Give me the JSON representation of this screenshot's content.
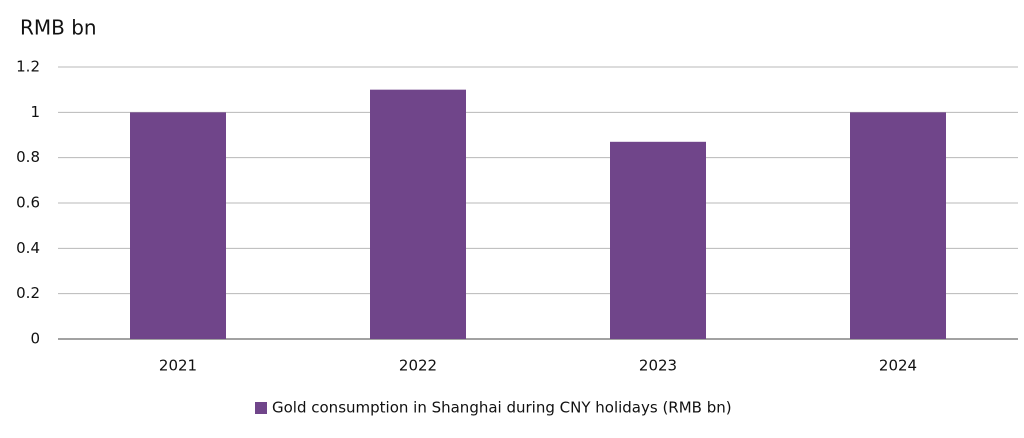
{
  "chart_data": {
    "type": "bar",
    "y_axis_label": "RMB bn",
    "categories": [
      "2021",
      "2022",
      "2023",
      "2024"
    ],
    "series": [
      {
        "name": "Gold consumption in Shanghai during CNY holidays (RMB bn)",
        "color": "#70458a",
        "values": [
          1.0,
          1.1,
          0.87,
          1.0
        ]
      }
    ],
    "ylim": [
      0,
      1.2
    ],
    "yticks": [
      0,
      0.2,
      0.4,
      0.6,
      0.8,
      1,
      1.2
    ],
    "grid": true,
    "legend": "bottom"
  }
}
